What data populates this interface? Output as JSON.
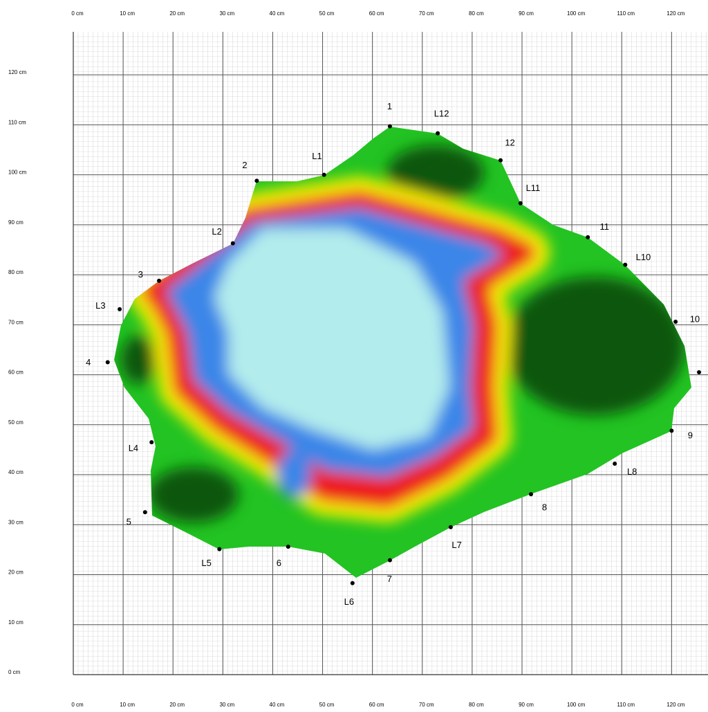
{
  "chart_data": {
    "type": "scatter",
    "x": [
      63.5,
      73.1,
      85.7,
      89.7,
      103.2,
      110.7,
      120.8,
      125.5,
      120.0,
      108.6,
      91.8,
      75.7,
      63.5,
      56.0,
      43.1,
      29.3,
      14.4,
      15.7,
      6.9,
      9.3,
      17.2,
      32.0,
      36.8,
      50.3
    ],
    "y": [
      109.7,
      108.3,
      102.9,
      94.3,
      87.5,
      82.0,
      70.6,
      60.5,
      48.8,
      42.2,
      36.1,
      29.5,
      22.9,
      18.3,
      25.6,
      25.1,
      32.5,
      46.5,
      62.5,
      73.1,
      78.8,
      86.3,
      98.8,
      100.0
    ],
    "labels": [
      "1",
      "L12",
      "12",
      "L11",
      "11",
      "L10",
      "10",
      null,
      "9",
      "L8",
      "8",
      "L7",
      "7",
      "L6",
      "6",
      "L5",
      "5",
      "L4",
      "4",
      "L3",
      "3",
      "L2",
      "2",
      "L1"
    ],
    "color": "#000000",
    "xlim": [
      0,
      127.3
    ],
    "ylim": [
      0,
      128.6
    ],
    "xticks": [
      {
        "value": 0,
        "label": "0 cm"
      },
      {
        "value": 10,
        "label": "10 cm"
      },
      {
        "value": 20,
        "label": "20 cm"
      },
      {
        "value": 30,
        "label": "30 cm"
      },
      {
        "value": 40,
        "label": "40 cm"
      },
      {
        "value": 50,
        "label": "50 cm"
      },
      {
        "value": 60,
        "label": "60 cm"
      },
      {
        "value": 70,
        "label": "70 cm"
      },
      {
        "value": 80,
        "label": "80 cm"
      },
      {
        "value": 90,
        "label": "90 cm"
      },
      {
        "value": 100,
        "label": "100 cm"
      },
      {
        "value": 110,
        "label": "110 cm"
      },
      {
        "value": 120,
        "label": "120 cm"
      }
    ],
    "yticks": [
      {
        "value": 0,
        "label": "0 cm"
      },
      {
        "value": 10,
        "label": "10 cm"
      },
      {
        "value": 20,
        "label": "20 cm"
      },
      {
        "value": 30,
        "label": "30 cm"
      },
      {
        "value": 40,
        "label": "40 cm"
      },
      {
        "value": 50,
        "label": "50 cm"
      },
      {
        "value": 60,
        "label": "60 cm"
      },
      {
        "value": 70,
        "label": "70 cm"
      },
      {
        "value": 80,
        "label": "80 cm"
      },
      {
        "value": 90,
        "label": "90 cm"
      },
      {
        "value": 100,
        "label": "100 cm"
      },
      {
        "value": 110,
        "label": "110 cm"
      },
      {
        "value": 120,
        "label": "120 cm"
      }
    ],
    "grid": true
  }
}
